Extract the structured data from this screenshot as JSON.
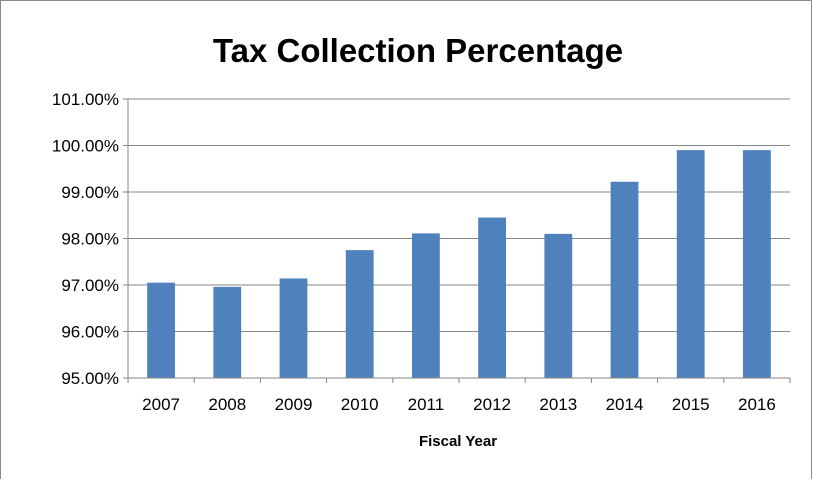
{
  "chart_data": {
    "type": "bar",
    "title": "Tax Collection Percentage",
    "xlabel": "Fiscal Year",
    "ylabel": "",
    "categories": [
      "2007",
      "2008",
      "2009",
      "2010",
      "2011",
      "2012",
      "2013",
      "2014",
      "2015",
      "2016"
    ],
    "values": [
      97.05,
      96.96,
      97.14,
      97.75,
      98.11,
      98.45,
      98.1,
      99.22,
      99.9,
      99.9
    ],
    "ylim": [
      95,
      101
    ],
    "yticks": [
      95,
      96,
      97,
      98,
      99,
      100,
      101
    ],
    "ytick_labels": [
      "95.00%",
      "96.00%",
      "97.00%",
      "98.00%",
      "99.00%",
      "100.00%",
      "101.00%"
    ],
    "grid": true,
    "legend": "none",
    "bar_color": "#4f81bd",
    "grid_color": "#868686",
    "axis_color": "#868686"
  }
}
